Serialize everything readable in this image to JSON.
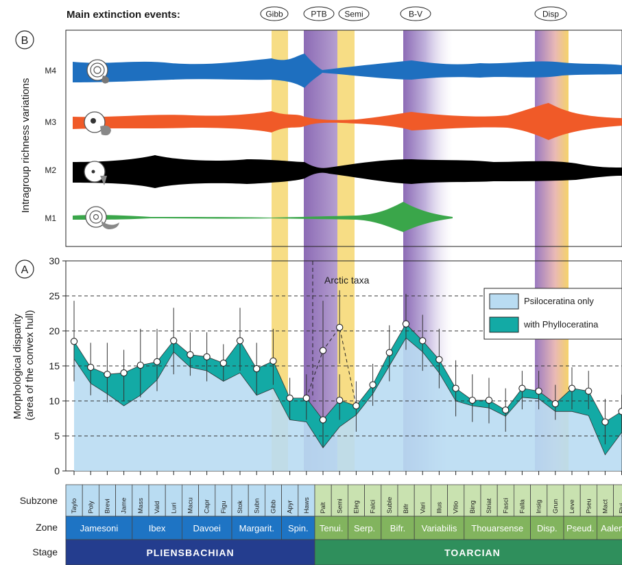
{
  "header": {
    "title": "Main extinction events:",
    "events": [
      "Gibb",
      "PTB",
      "Semi",
      "B-V",
      "Disp"
    ]
  },
  "panel_b": {
    "letter": "B",
    "ylabel": "Intragroup richness variations",
    "groups": [
      {
        "name": "M4",
        "color": "#1e6fbf"
      },
      {
        "name": "M3",
        "color": "#f05a28"
      },
      {
        "name": "M2",
        "color": "#000000"
      },
      {
        "name": "M1",
        "color": "#3aa64a"
      }
    ]
  },
  "panel_a": {
    "letter": "A",
    "annotation": "Arctic taxa"
  },
  "chart_data": {
    "type": "line",
    "ylabel": "Morphological disparity\n(area of the convex hull)",
    "ylim": [
      0,
      30
    ],
    "yticks": [
      0,
      5,
      10,
      15,
      20,
      25,
      30
    ],
    "grid": "dashed horizontal at 5, 10, 15, 20, 25",
    "legend": {
      "position": "top-right",
      "entries": [
        "Psiloceratina only",
        "with Phylloceratina"
      ]
    },
    "x": [
      "Taylo",
      "Poly",
      "Brevi",
      "Jame",
      "Mass",
      "Vald",
      "Luri",
      "Macu",
      "Capr",
      "Figu",
      "Stok",
      "Subn",
      "Gibb",
      "Apyr",
      "Haws",
      "Palt",
      "Semi",
      "Eleg",
      "Falci",
      "Suble",
      "Bifr",
      "Vari",
      "Illus",
      "Vitio",
      "Bing",
      "Striat",
      "Fasci",
      "Falla",
      "Insig",
      "Grun",
      "Leve",
      "Pseu",
      "Mact",
      "Flui"
    ],
    "series": [
      {
        "name": "with Phylloceratina",
        "color": "#13aaa5",
        "values": [
          18.5,
          14.8,
          13.8,
          14.0,
          15.1,
          15.6,
          18.6,
          16.6,
          16.3,
          15.4,
          18.6,
          14.6,
          15.7,
          10.4,
          10.4,
          7.3,
          10.1,
          9.3,
          12.3,
          16.9,
          21.0,
          18.6,
          15.9,
          11.8,
          10.1,
          10.1,
          8.7,
          11.8,
          11.4,
          9.6,
          11.8,
          11.4,
          7.0,
          8.5
        ],
        "error_low": [
          12.8,
          10.8,
          9.8,
          10.0,
          10.5,
          11.4,
          13.8,
          13.6,
          12.8,
          12.8,
          14.3,
          10.8,
          12.3,
          7.3,
          7.3,
          3.3,
          7.3,
          5.6,
          9.3,
          12.8,
          17.3,
          14.3,
          11.8,
          7.8,
          7.0,
          6.8,
          5.6,
          8.8,
          8.8,
          7.3,
          8.8,
          8.8,
          3.8,
          5.8
        ],
        "error_high": [
          24.3,
          18.3,
          18.3,
          17.3,
          20.3,
          20.3,
          23.3,
          19.8,
          19.8,
          18.1,
          23.3,
          18.3,
          20.3,
          13.3,
          13.8,
          14.5,
          13.8,
          12.8,
          15.3,
          20.8,
          25.3,
          22.3,
          20.3,
          15.8,
          13.8,
          13.3,
          11.8,
          14.3,
          14.3,
          12.3,
          14.8,
          14.3,
          10.3,
          10.9
        ],
        "lower_band": [
          16.0,
          12.5,
          11.0,
          9.3,
          10.8,
          13.0,
          17.0,
          14.8,
          14.3,
          12.8,
          14.0,
          10.8,
          11.8,
          7.3,
          7.0,
          3.3,
          6.3,
          8.0,
          11.0,
          15.0,
          19.0,
          17.0,
          14.0,
          10.0,
          9.3,
          9.0,
          7.8,
          10.5,
          10.3,
          8.5,
          8.5,
          7.9,
          2.3,
          5.5
        ]
      },
      {
        "name": "Arctic taxa",
        "style": "dashed",
        "x": [
          "Haws",
          "Palt",
          "Semi",
          "Eleg"
        ],
        "values": [
          10.4,
          17.2,
          20.5,
          9.3
        ],
        "error_low": [
          null,
          10.8,
          15.3,
          null
        ],
        "error_high": [
          null,
          24.3,
          25.8,
          null
        ]
      }
    ]
  },
  "bottom": {
    "row_labels": {
      "subzone": "Subzone",
      "zone": "Zone",
      "stage": "Stage"
    },
    "subzones": [
      "Taylo",
      "Poly",
      "Brevi",
      "Jame",
      "Mass",
      "Vald",
      "Luri",
      "Macu",
      "Capr",
      "Figu",
      "Stok",
      "Subn",
      "Gibb",
      "Apyr",
      "Haws",
      "Palt",
      "Semi",
      "Eleg",
      "Falci",
      "Suble",
      "Bifr",
      "Vari",
      "Illus",
      "Vitio",
      "Bing",
      "Striat",
      "Fasci",
      "Falla",
      "Insig",
      "Grun",
      "Leve",
      "Pseu",
      "Mact",
      "Flui"
    ],
    "zones": [
      "Jamesoni",
      "Ibex",
      "Davoei",
      "Margarit.",
      "Spin.",
      "Tenui.",
      "Serp.",
      "Bifr.",
      "Variabilis",
      "Thouarsense",
      "Disp.",
      "Pseud.",
      "Aalen."
    ],
    "stages": [
      "PLIENSBACHIAN",
      "TOARCIAN"
    ],
    "colors": {
      "pliens_sub": "#b9dcf2",
      "pliens_zone": "#1e74c4",
      "pliens_stage": "#243d8e",
      "toarc_sub": "#c9e2b0",
      "toarc_zone": "#82b45e",
      "toarc_stage": "#2f8f5c"
    }
  }
}
